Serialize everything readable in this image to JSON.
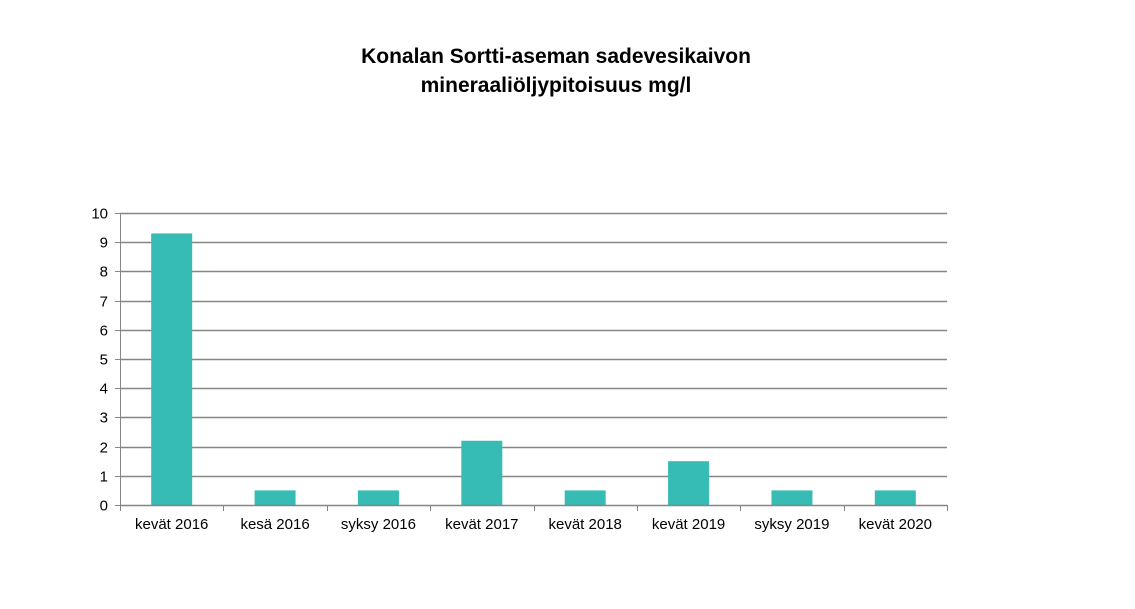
{
  "chart_data": {
    "type": "bar",
    "title": [
      "Konalan Sortti-aseman sadevesikaivon",
      "mineraaliöljypitoisuus mg/l"
    ],
    "xlabel": "",
    "ylabel": "",
    "categories": [
      "kevät 2016",
      "kesä 2016",
      "syksy 2016",
      "kevät 2017",
      "kevät 2018",
      "kevät 2019",
      "syksy 2019",
      "kevät 2020"
    ],
    "values": [
      9.3,
      0.5,
      0.5,
      2.2,
      0.5,
      1.5,
      0.5,
      0.5
    ],
    "ylim": [
      0,
      10
    ],
    "yticks": [
      0,
      1,
      2,
      3,
      4,
      5,
      6,
      7,
      8,
      9,
      10
    ],
    "grid": true,
    "legend": "none",
    "colors": {
      "bar": "#36BCB4",
      "grid": "#868686",
      "axis": "#868686"
    }
  }
}
